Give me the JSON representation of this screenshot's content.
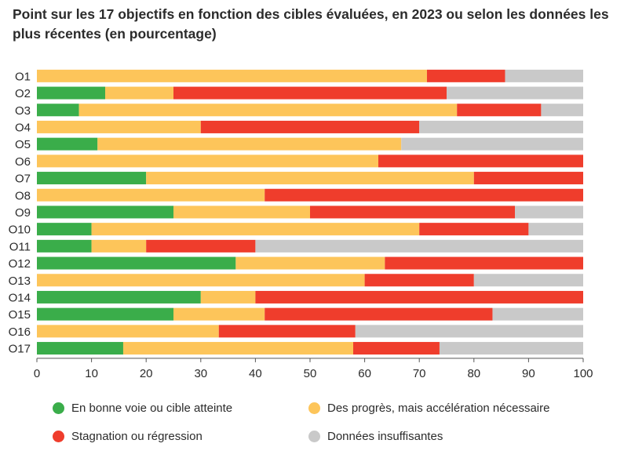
{
  "chart_data": {
    "type": "bar",
    "orientation": "horizontal",
    "stacked": true,
    "title": "Point sur les 17 objectifs en fonction des cibles évaluées, en 2023 ou selon les données les plus récentes (en pourcentage)",
    "categories": [
      "O1",
      "O2",
      "O3",
      "O4",
      "O5",
      "O6",
      "O7",
      "O8",
      "O9",
      "O10",
      "O11",
      "O12",
      "O13",
      "O14",
      "O15",
      "O16",
      "O17"
    ],
    "xlim": [
      0,
      100
    ],
    "xticks": [
      0,
      10,
      20,
      30,
      40,
      50,
      60,
      70,
      80,
      90,
      100
    ],
    "grid": false,
    "legend_position": "bottom",
    "series": [
      {
        "name": "En bonne voie ou cible atteinte",
        "color": "#3aad4a",
        "values": [
          0,
          12.5,
          7.7,
          0,
          11.1,
          0,
          20,
          0,
          25,
          10,
          10,
          36.4,
          0,
          30,
          25,
          0,
          15.8
        ]
      },
      {
        "name": "Des progrès, mais accélération nécessaire",
        "color": "#fdc55a",
        "values": [
          71.4,
          12.5,
          69.2,
          30,
          55.6,
          62.5,
          60,
          41.7,
          25,
          60,
          10,
          27.3,
          60,
          10,
          16.7,
          33.3,
          42.1
        ]
      },
      {
        "name": "Stagnation ou régression",
        "color": "#ef3d2c",
        "values": [
          14.3,
          50,
          15.4,
          40,
          0,
          37.5,
          20,
          58.3,
          37.5,
          20,
          20,
          36.3,
          20,
          60,
          41.7,
          25,
          15.8
        ]
      },
      {
        "name": "Données insuffisantes",
        "color": "#c9c9c9",
        "values": [
          14.3,
          25,
          7.7,
          30,
          33.3,
          0,
          0,
          0,
          12.5,
          10,
          60,
          0,
          20,
          0,
          16.6,
          41.7,
          26.3
        ]
      }
    ]
  }
}
